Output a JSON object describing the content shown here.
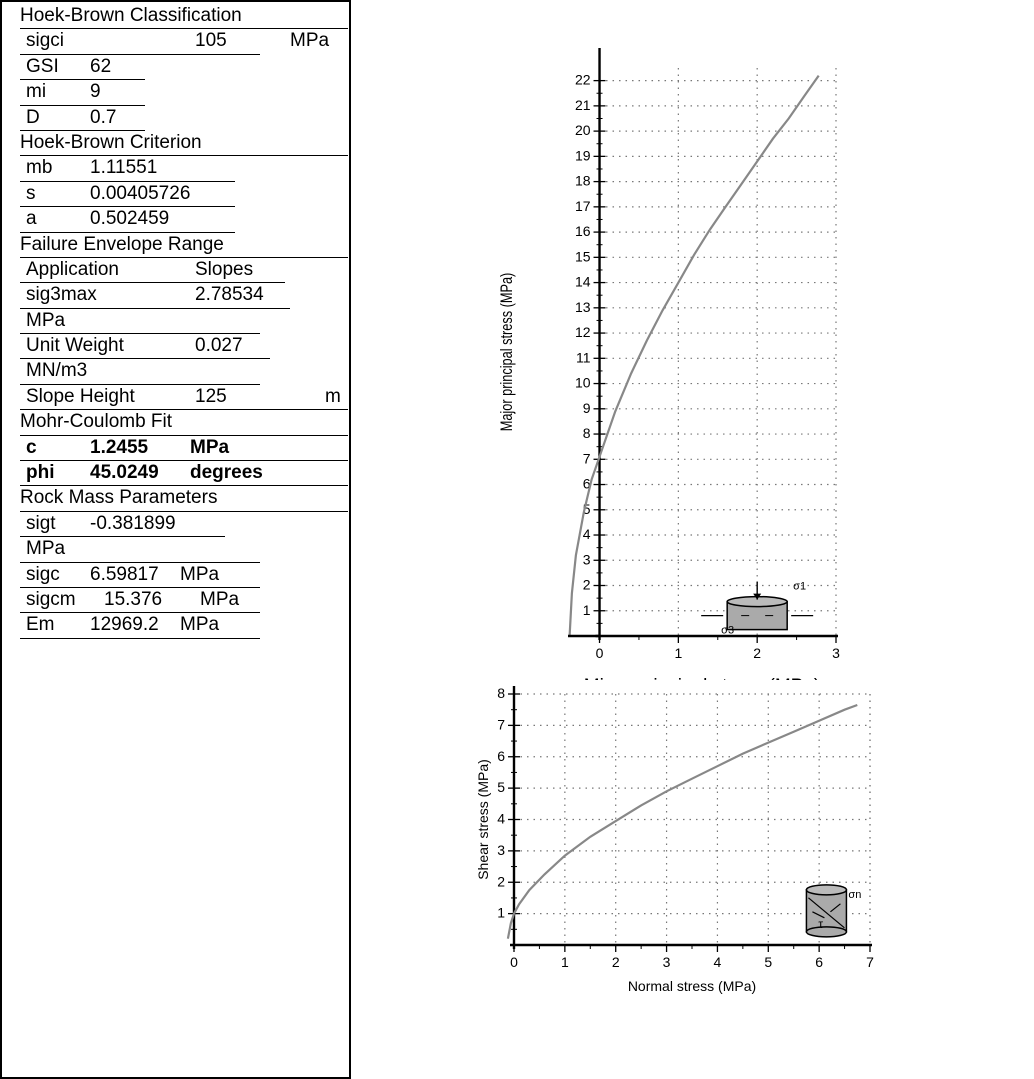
{
  "params": {
    "rows": [
      {
        "kind": "head",
        "label": "Hoek-Brown Classification"
      },
      {
        "kind": "param",
        "name": "sigci",
        "value": "105",
        "unit": "MPa"
      },
      {
        "kind": "param",
        "name": "GSI",
        "value": "62",
        "unit": ""
      },
      {
        "kind": "param",
        "name": "mi",
        "value": "9",
        "unit": ""
      },
      {
        "kind": "param",
        "name": "D",
        "value": "0.7",
        "unit": ""
      },
      {
        "kind": "head",
        "label": "Hoek-Brown Criterion"
      },
      {
        "kind": "param",
        "name": "mb",
        "value": "1.11551",
        "unit": ""
      },
      {
        "kind": "param",
        "name": "s",
        "value": "0.00405726",
        "unit": ""
      },
      {
        "kind": "param",
        "name": "a",
        "value": "0.502459",
        "unit": ""
      },
      {
        "kind": "head",
        "label": "Failure Envelope Range"
      },
      {
        "kind": "param",
        "name": "Application",
        "value": "Slopes",
        "unit": ""
      },
      {
        "kind": "param",
        "name": "sig3max",
        "value": "2.78534",
        "unit": ""
      },
      {
        "kind": "cont",
        "label": "MPa"
      },
      {
        "kind": "param",
        "name": "Unit Weight",
        "value": "0.027",
        "unit": ""
      },
      {
        "kind": "cont",
        "label": "MN/m3"
      },
      {
        "kind": "param",
        "name": "Slope Height",
        "value": "125",
        "unit": "m"
      },
      {
        "kind": "head",
        "label": "Mohr-Coulomb Fit"
      },
      {
        "kind": "bold",
        "name": "c",
        "value": "1.2455",
        "unit": "MPa"
      },
      {
        "kind": "bold",
        "name": "phi",
        "value": "45.0249",
        "unit": "degrees"
      },
      {
        "kind": "head",
        "label": "Rock Mass Parameters"
      },
      {
        "kind": "param",
        "name": "sigt",
        "value": "-0.381899",
        "unit": ""
      },
      {
        "kind": "cont",
        "label": "MPa"
      },
      {
        "kind": "param",
        "name": "sigc",
        "value": "6.59817",
        "unit": "MPa"
      },
      {
        "kind": "param",
        "name": "sigcm",
        "value": "15.376",
        "unit": "MPa"
      },
      {
        "kind": "param",
        "name": "Em",
        "value": "12969.2",
        "unit": "MPa"
      }
    ]
  },
  "chart_data": [
    {
      "type": "line",
      "title": "",
      "xlabel": "Minor principal stress (MPa)",
      "ylabel": "Major principal stress (MPa)",
      "xlim": [
        -0.4,
        3
      ],
      "ylim": [
        0,
        22.5
      ],
      "xticks": [
        0,
        1,
        2,
        3
      ],
      "yticks": [
        1,
        2,
        3,
        4,
        5,
        6,
        7,
        8,
        9,
        10,
        11,
        12,
        13,
        14,
        15,
        16,
        17,
        18,
        19,
        20,
        21,
        22
      ],
      "grid": true,
      "inset_labels": [
        "σ1",
        "σ3"
      ],
      "series": [
        {
          "x": [
            -0.38,
            -0.35,
            -0.3,
            -0.2,
            -0.1,
            0,
            0.2,
            0.4,
            0.6,
            0.8,
            1.0,
            1.2,
            1.4,
            1.6,
            1.8,
            2.0,
            2.2,
            2.4,
            2.6,
            2.78
          ],
          "y": [
            0,
            1.7,
            3.2,
            4.9,
            6.2,
            7.1,
            8.9,
            10.4,
            11.7,
            12.9,
            14.0,
            15.1,
            16.1,
            17.0,
            17.9,
            18.8,
            19.7,
            20.5,
            21.4,
            22.2
          ]
        }
      ]
    },
    {
      "type": "line",
      "title": "",
      "xlabel": "Normal stress (MPa)",
      "ylabel": "Shear stress (MPa)",
      "xlim": [
        0,
        7
      ],
      "ylim": [
        0,
        8
      ],
      "xticks": [
        0,
        1,
        2,
        3,
        4,
        5,
        6,
        7
      ],
      "yticks": [
        1,
        2,
        3,
        4,
        5,
        6,
        7,
        8
      ],
      "grid": true,
      "inset_labels": [
        "σn",
        "τ"
      ],
      "series": [
        {
          "x": [
            -0.12,
            -0.06,
            0,
            0.1,
            0.3,
            0.6,
            1.0,
            1.5,
            2.0,
            2.5,
            3.0,
            3.5,
            4.0,
            4.5,
            5.0,
            5.5,
            6.0,
            6.5,
            6.75
          ],
          "y": [
            0.2,
            0.7,
            1.0,
            1.3,
            1.75,
            2.25,
            2.85,
            3.45,
            3.95,
            4.45,
            4.9,
            5.3,
            5.7,
            6.1,
            6.45,
            6.8,
            7.15,
            7.5,
            7.65
          ]
        }
      ]
    }
  ]
}
